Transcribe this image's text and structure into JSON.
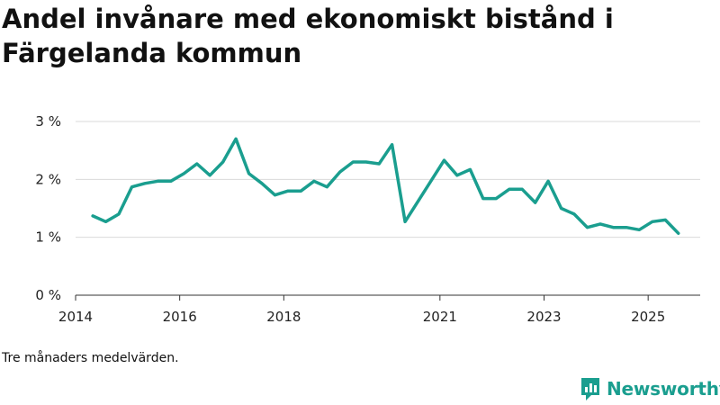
{
  "title": "Andel invånare med ekonomiskt bistånd i Färgelanda kommun",
  "footnote": "Tre månaders medelvärden.",
  "brand": {
    "name": "Newsworthy",
    "icon": "newsworthy-logo-icon",
    "color": "#1a9e8f"
  },
  "chart_data": {
    "type": "line",
    "title": "Andel invånare med ekonomiskt bistånd i Färgelanda kommun",
    "xlabel": "",
    "ylabel": "",
    "ylim": [
      0,
      3
    ],
    "xlim": [
      2014.0,
      2026.0
    ],
    "grid": true,
    "legend": "none",
    "y_ticks": [
      {
        "value": 0,
        "label": "0 %"
      },
      {
        "value": 1,
        "label": "1 %"
      },
      {
        "value": 2,
        "label": "2 %"
      },
      {
        "value": 3,
        "label": "3 %"
      }
    ],
    "x_ticks": [
      {
        "value": 2014,
        "label": "2014"
      },
      {
        "value": 2016,
        "label": "2016"
      },
      {
        "value": 2018,
        "label": "2018"
      },
      {
        "value": 2021,
        "label": "2021"
      },
      {
        "value": 2023,
        "label": "2023"
      },
      {
        "value": 2025,
        "label": "2025"
      }
    ],
    "series": [
      {
        "name": "Andel invånare",
        "color": "#1a9e8f",
        "x": [
          2014.33,
          2014.58,
          2014.83,
          2015.08,
          2015.33,
          2015.58,
          2015.83,
          2016.08,
          2016.33,
          2016.58,
          2016.83,
          2017.08,
          2017.33,
          2017.58,
          2017.83,
          2018.08,
          2018.33,
          2018.58,
          2018.83,
          2019.08,
          2019.33,
          2019.58,
          2019.83,
          2020.08,
          2020.33,
          2021.08,
          2021.33,
          2021.58,
          2021.83,
          2022.08,
          2022.33,
          2022.58,
          2022.83,
          2023.08,
          2023.33,
          2023.58,
          2023.83,
          2024.08,
          2024.33,
          2024.58,
          2024.83,
          2025.08,
          2025.33,
          2025.58
        ],
        "values": [
          1.37,
          1.27,
          1.4,
          1.87,
          1.93,
          1.97,
          1.97,
          2.1,
          2.27,
          2.07,
          2.3,
          2.7,
          2.1,
          1.93,
          1.73,
          1.8,
          1.8,
          1.97,
          1.87,
          2.13,
          2.3,
          2.3,
          2.27,
          2.6,
          1.27,
          2.33,
          2.07,
          2.17,
          1.67,
          1.67,
          1.83,
          1.83,
          1.6,
          1.97,
          1.5,
          1.4,
          1.17,
          1.23,
          1.17,
          1.17,
          1.13,
          1.27,
          1.3,
          1.07
        ]
      }
    ]
  }
}
